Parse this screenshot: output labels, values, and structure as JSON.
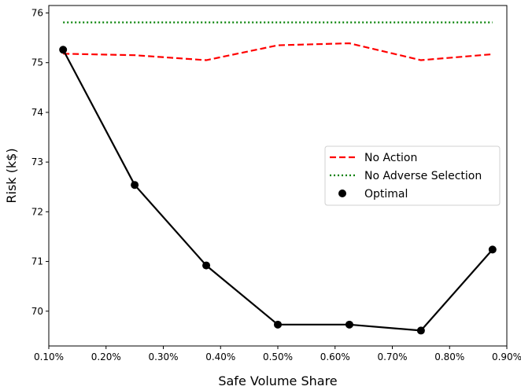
{
  "chart_data": {
    "type": "line",
    "title": "",
    "xlabel": "Safe Volume Share",
    "ylabel": "Risk (k$)",
    "x": [
      0.125,
      0.25,
      0.375,
      0.5,
      0.625,
      0.75,
      0.875
    ],
    "x_unit": "%",
    "xlim": [
      0.1,
      0.9
    ],
    "ylim": [
      69.3,
      76.15
    ],
    "x_ticks": [
      0.1,
      0.2,
      0.3,
      0.4,
      0.5,
      0.6,
      0.7,
      0.8,
      0.9
    ],
    "x_tick_labels": [
      "0.10%",
      "0.20%",
      "0.30%",
      "0.40%",
      "0.50%",
      "0.60%",
      "0.70%",
      "0.80%",
      "0.90%"
    ],
    "y_ticks": [
      70,
      71,
      72,
      73,
      74,
      75,
      76
    ],
    "y_tick_labels": [
      "70",
      "71",
      "72",
      "73",
      "74",
      "75",
      "76"
    ],
    "grid": false,
    "legend_position": "center-right",
    "series": [
      {
        "name": "No Action",
        "style": "dashed",
        "color": "#ff0000",
        "marker": "none",
        "values": [
          75.18,
          75.15,
          75.05,
          75.35,
          75.39,
          75.05,
          75.17
        ]
      },
      {
        "name": "No Adverse Selection",
        "style": "dotted",
        "color": "#008000",
        "marker": "none",
        "values": [
          75.81,
          75.81,
          75.81,
          75.81,
          75.81,
          75.81,
          75.81
        ]
      },
      {
        "name": "Optimal",
        "style": "solid",
        "color": "#000000",
        "marker": "circle",
        "values": [
          75.26,
          72.54,
          70.92,
          69.73,
          69.73,
          69.61,
          71.24
        ]
      }
    ]
  }
}
